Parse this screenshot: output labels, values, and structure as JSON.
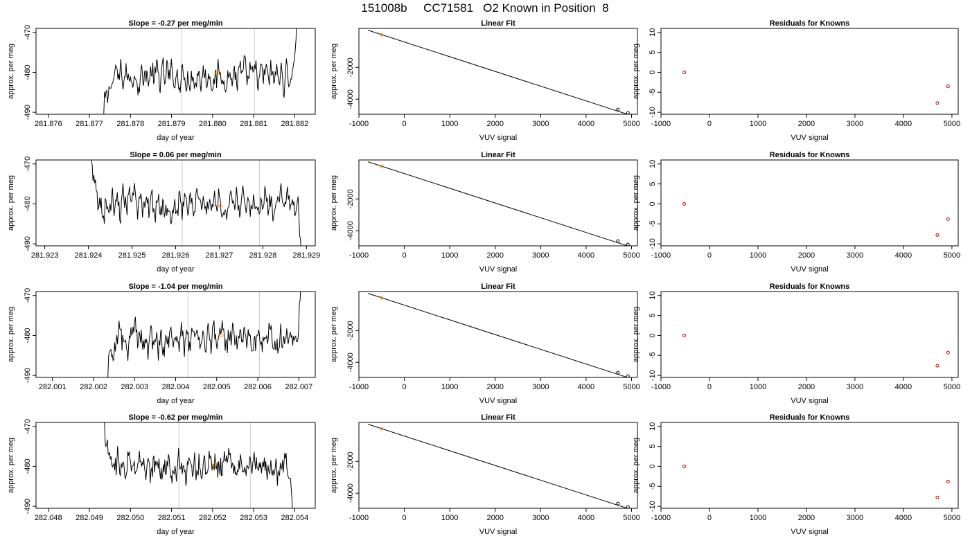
{
  "figure_title": "151008b     CC71581   O2 Known in Position  8",
  "colors": {
    "trace": "#000000",
    "marker": "#ff9900",
    "residual": "#cc0000",
    "gridline": "#c8c8c8"
  },
  "chart_data": [
    {
      "panel": "drift",
      "row": 0,
      "type": "line",
      "title": "Slope =  -0.27  per meg/min",
      "xlabel": "day of year",
      "ylabel": "approx. per meg",
      "xlim": [
        281.8757,
        281.8825
      ],
      "ylim": [
        -490.5,
        -469
      ],
      "xticks": [
        "281.876",
        "281.877",
        "281.878",
        "281.879",
        "281.880",
        "281.881",
        "281.882"
      ],
      "yticks": [
        "-490",
        "-480",
        "-470"
      ],
      "vlines": [
        281.87925,
        281.88102
      ],
      "trace": {
        "x_start": 281.87735,
        "x_end": 281.88205,
        "start": -491,
        "mean": -481,
        "end": -466,
        "ramp_in": 0.05,
        "ramp_out": 0.025
      },
      "marker": {
        "x": 281.88012,
        "y": -480.2
      }
    },
    {
      "panel": "fit",
      "row": 0,
      "type": "line",
      "title": "Linear Fit",
      "xlabel": "VUV signal",
      "ylabel": "approx. per meg",
      "xlim": [
        -1000,
        5130
      ],
      "ylim": [
        -4950,
        450
      ],
      "xticks": [
        "-1000",
        "0",
        "1000",
        "2000",
        "3000",
        "4000",
        "5000"
      ],
      "yticks": [
        "-2000",
        "-4000"
      ],
      "line": [
        [
          -800,
          335
        ],
        [
          4920,
          -4960
        ]
      ],
      "points": [
        {
          "x": -500,
          "y": 50,
          "color": "orange"
        },
        {
          "x": 4700,
          "y": -4650,
          "color": "black"
        },
        {
          "x": 4920,
          "y": -4870,
          "color": "black"
        }
      ]
    },
    {
      "panel": "residuals",
      "row": 0,
      "type": "scatter",
      "title": "Residuals for Knowns",
      "xlabel": "VUV signal",
      "ylabel": "approx. per meg",
      "xlim": [
        -1000,
        5130
      ],
      "ylim": [
        -10.5,
        11
      ],
      "xticks": [
        "-1000",
        "0",
        "1000",
        "2000",
        "3000",
        "4000",
        "5000"
      ],
      "yticks": [
        "-10",
        "-5",
        "0",
        "5",
        "10"
      ],
      "points": [
        {
          "x": -520,
          "y": 0
        },
        {
          "x": 4700,
          "y": -7.7
        },
        {
          "x": 4920,
          "y": -3.5
        }
      ]
    },
    {
      "panel": "drift",
      "row": 1,
      "type": "line",
      "title": "Slope =  0.06  per meg/min",
      "xlabel": "day of year",
      "ylabel": "approx. per meg",
      "xlim": [
        281.9228,
        281.9292
      ],
      "ylim": [
        -490.5,
        -469
      ],
      "xticks": [
        "281.923",
        "281.924",
        "281.925",
        "281.926",
        "281.927",
        "281.928",
        "281.929"
      ],
      "yticks": [
        "-490",
        "-480",
        "-470"
      ],
      "vlines": [
        281.92615,
        281.92792
      ],
      "trace": {
        "x_start": 281.92405,
        "x_end": 281.92888,
        "start": -468,
        "mean": -480,
        "end": -492,
        "ramp_in": 0.04,
        "ramp_out": 0.02
      },
      "marker": {
        "x": 281.92703,
        "y": -480.5
      }
    },
    {
      "panel": "fit",
      "row": 1,
      "type": "line",
      "title": "Linear Fit",
      "xlabel": "VUV signal",
      "ylabel": "approx. per meg",
      "xlim": [
        -1000,
        5130
      ],
      "ylim": [
        -4950,
        450
      ],
      "xticks": [
        "-1000",
        "0",
        "1000",
        "2000",
        "3000",
        "4000",
        "5000"
      ],
      "yticks": [
        "-2000",
        "-4000"
      ],
      "line": [
        [
          -800,
          335
        ],
        [
          4920,
          -4960
        ]
      ],
      "points": [
        {
          "x": -500,
          "y": 50,
          "color": "orange"
        },
        {
          "x": 4700,
          "y": -4650,
          "color": "black"
        },
        {
          "x": 4920,
          "y": -4870,
          "color": "black"
        }
      ]
    },
    {
      "panel": "residuals",
      "row": 1,
      "type": "scatter",
      "title": "Residuals for Knowns",
      "xlabel": "VUV signal",
      "ylabel": "approx. per meg",
      "xlim": [
        -1000,
        5130
      ],
      "ylim": [
        -10.5,
        11
      ],
      "xticks": [
        "-1000",
        "0",
        "1000",
        "2000",
        "3000",
        "4000",
        "5000"
      ],
      "yticks": [
        "-10",
        "-5",
        "0",
        "5",
        "10"
      ],
      "points": [
        {
          "x": -520,
          "y": 0
        },
        {
          "x": 4700,
          "y": -7.8
        },
        {
          "x": 4920,
          "y": -3.8
        }
      ]
    },
    {
      "panel": "drift",
      "row": 2,
      "type": "line",
      "title": "Slope =  -1.04  per meg/min",
      "xlabel": "day of year",
      "ylabel": "approx. per meg",
      "xlim": [
        282.0006,
        282.0074
      ],
      "ylim": [
        -490.5,
        -469
      ],
      "xticks": [
        "282.001",
        "282.002",
        "282.003",
        "282.004",
        "282.005",
        "282.006",
        "282.007"
      ],
      "yticks": [
        "-490",
        "-480",
        "-470"
      ],
      "vlines": [
        282.0043,
        282.00604
      ],
      "trace": {
        "x_start": 282.00235,
        "x_end": 282.00705,
        "start": -491,
        "mean": -481,
        "end": -466,
        "ramp_in": 0.05,
        "ramp_out": 0.025
      },
      "marker": {
        "x": 282.00512,
        "y": -480.0
      }
    },
    {
      "panel": "fit",
      "row": 2,
      "type": "line",
      "title": "Linear Fit",
      "xlabel": "VUV signal",
      "ylabel": "approx. per meg",
      "xlim": [
        -1000,
        5130
      ],
      "ylim": [
        -4950,
        450
      ],
      "xticks": [
        "-1000",
        "0",
        "1000",
        "2000",
        "3000",
        "4000",
        "5000"
      ],
      "yticks": [
        "-2000",
        "-4000"
      ],
      "line": [
        [
          -800,
          335
        ],
        [
          4920,
          -4960
        ]
      ],
      "points": [
        {
          "x": -500,
          "y": 50,
          "color": "orange"
        },
        {
          "x": 4700,
          "y": -4650,
          "color": "black"
        },
        {
          "x": 4920,
          "y": -4870,
          "color": "black"
        }
      ]
    },
    {
      "panel": "residuals",
      "row": 2,
      "type": "scatter",
      "title": "Residuals for Knowns",
      "xlabel": "VUV signal",
      "ylabel": "approx. per meg",
      "xlim": [
        -1000,
        5130
      ],
      "ylim": [
        -10.5,
        11
      ],
      "xticks": [
        "-1000",
        "0",
        "1000",
        "2000",
        "3000",
        "4000",
        "5000"
      ],
      "yticks": [
        "-10",
        "-5",
        "0",
        "5",
        "10"
      ],
      "points": [
        {
          "x": -520,
          "y": 0
        },
        {
          "x": 4700,
          "y": -7.6
        },
        {
          "x": 4920,
          "y": -4.3
        }
      ]
    },
    {
      "panel": "drift",
      "row": 3,
      "type": "line",
      "title": "Slope =  -0.62  per meg/min",
      "xlabel": "day of year",
      "ylabel": "approx. per meg",
      "xlim": [
        282.0477,
        282.0545
      ],
      "ylim": [
        -490.5,
        -469
      ],
      "xticks": [
        "282.048",
        "282.049",
        "282.050",
        "282.051",
        "282.052",
        "282.053",
        "282.054"
      ],
      "yticks": [
        "-490",
        "-480",
        "-470"
      ],
      "vlines": [
        282.05118,
        282.05292
      ],
      "trace": {
        "x_start": 282.04935,
        "x_end": 282.05395,
        "start": -468,
        "mean": -480,
        "end": -492,
        "ramp_in": 0.04,
        "ramp_out": 0.02
      },
      "marker": {
        "x": 282.05203,
        "y": -479.5
      }
    },
    {
      "panel": "fit",
      "row": 3,
      "type": "line",
      "title": "Linear Fit",
      "xlabel": "VUV signal",
      "ylabel": "approx. per meg",
      "xlim": [
        -1000,
        5130
      ],
      "ylim": [
        -4950,
        450
      ],
      "xticks": [
        "-1000",
        "0",
        "1000",
        "2000",
        "3000",
        "4000",
        "5000"
      ],
      "yticks": [
        "-2000",
        "-4000"
      ],
      "line": [
        [
          -800,
          335
        ],
        [
          4920,
          -4960
        ]
      ],
      "points": [
        {
          "x": -500,
          "y": 50,
          "color": "orange"
        },
        {
          "x": 4700,
          "y": -4650,
          "color": "black"
        },
        {
          "x": 4920,
          "y": -4870,
          "color": "black"
        }
      ]
    },
    {
      "panel": "residuals",
      "row": 3,
      "type": "scatter",
      "title": "Residuals for Knowns",
      "xlabel": "VUV signal",
      "ylabel": "approx. per meg",
      "xlim": [
        -1000,
        5130
      ],
      "ylim": [
        -10.5,
        11
      ],
      "xticks": [
        "-1000",
        "0",
        "1000",
        "2000",
        "3000",
        "4000",
        "5000"
      ],
      "yticks": [
        "-10",
        "-5",
        "0",
        "5",
        "10"
      ],
      "points": [
        {
          "x": -520,
          "y": 0
        },
        {
          "x": 4700,
          "y": -7.8
        },
        {
          "x": 4920,
          "y": -3.8
        }
      ]
    }
  ]
}
